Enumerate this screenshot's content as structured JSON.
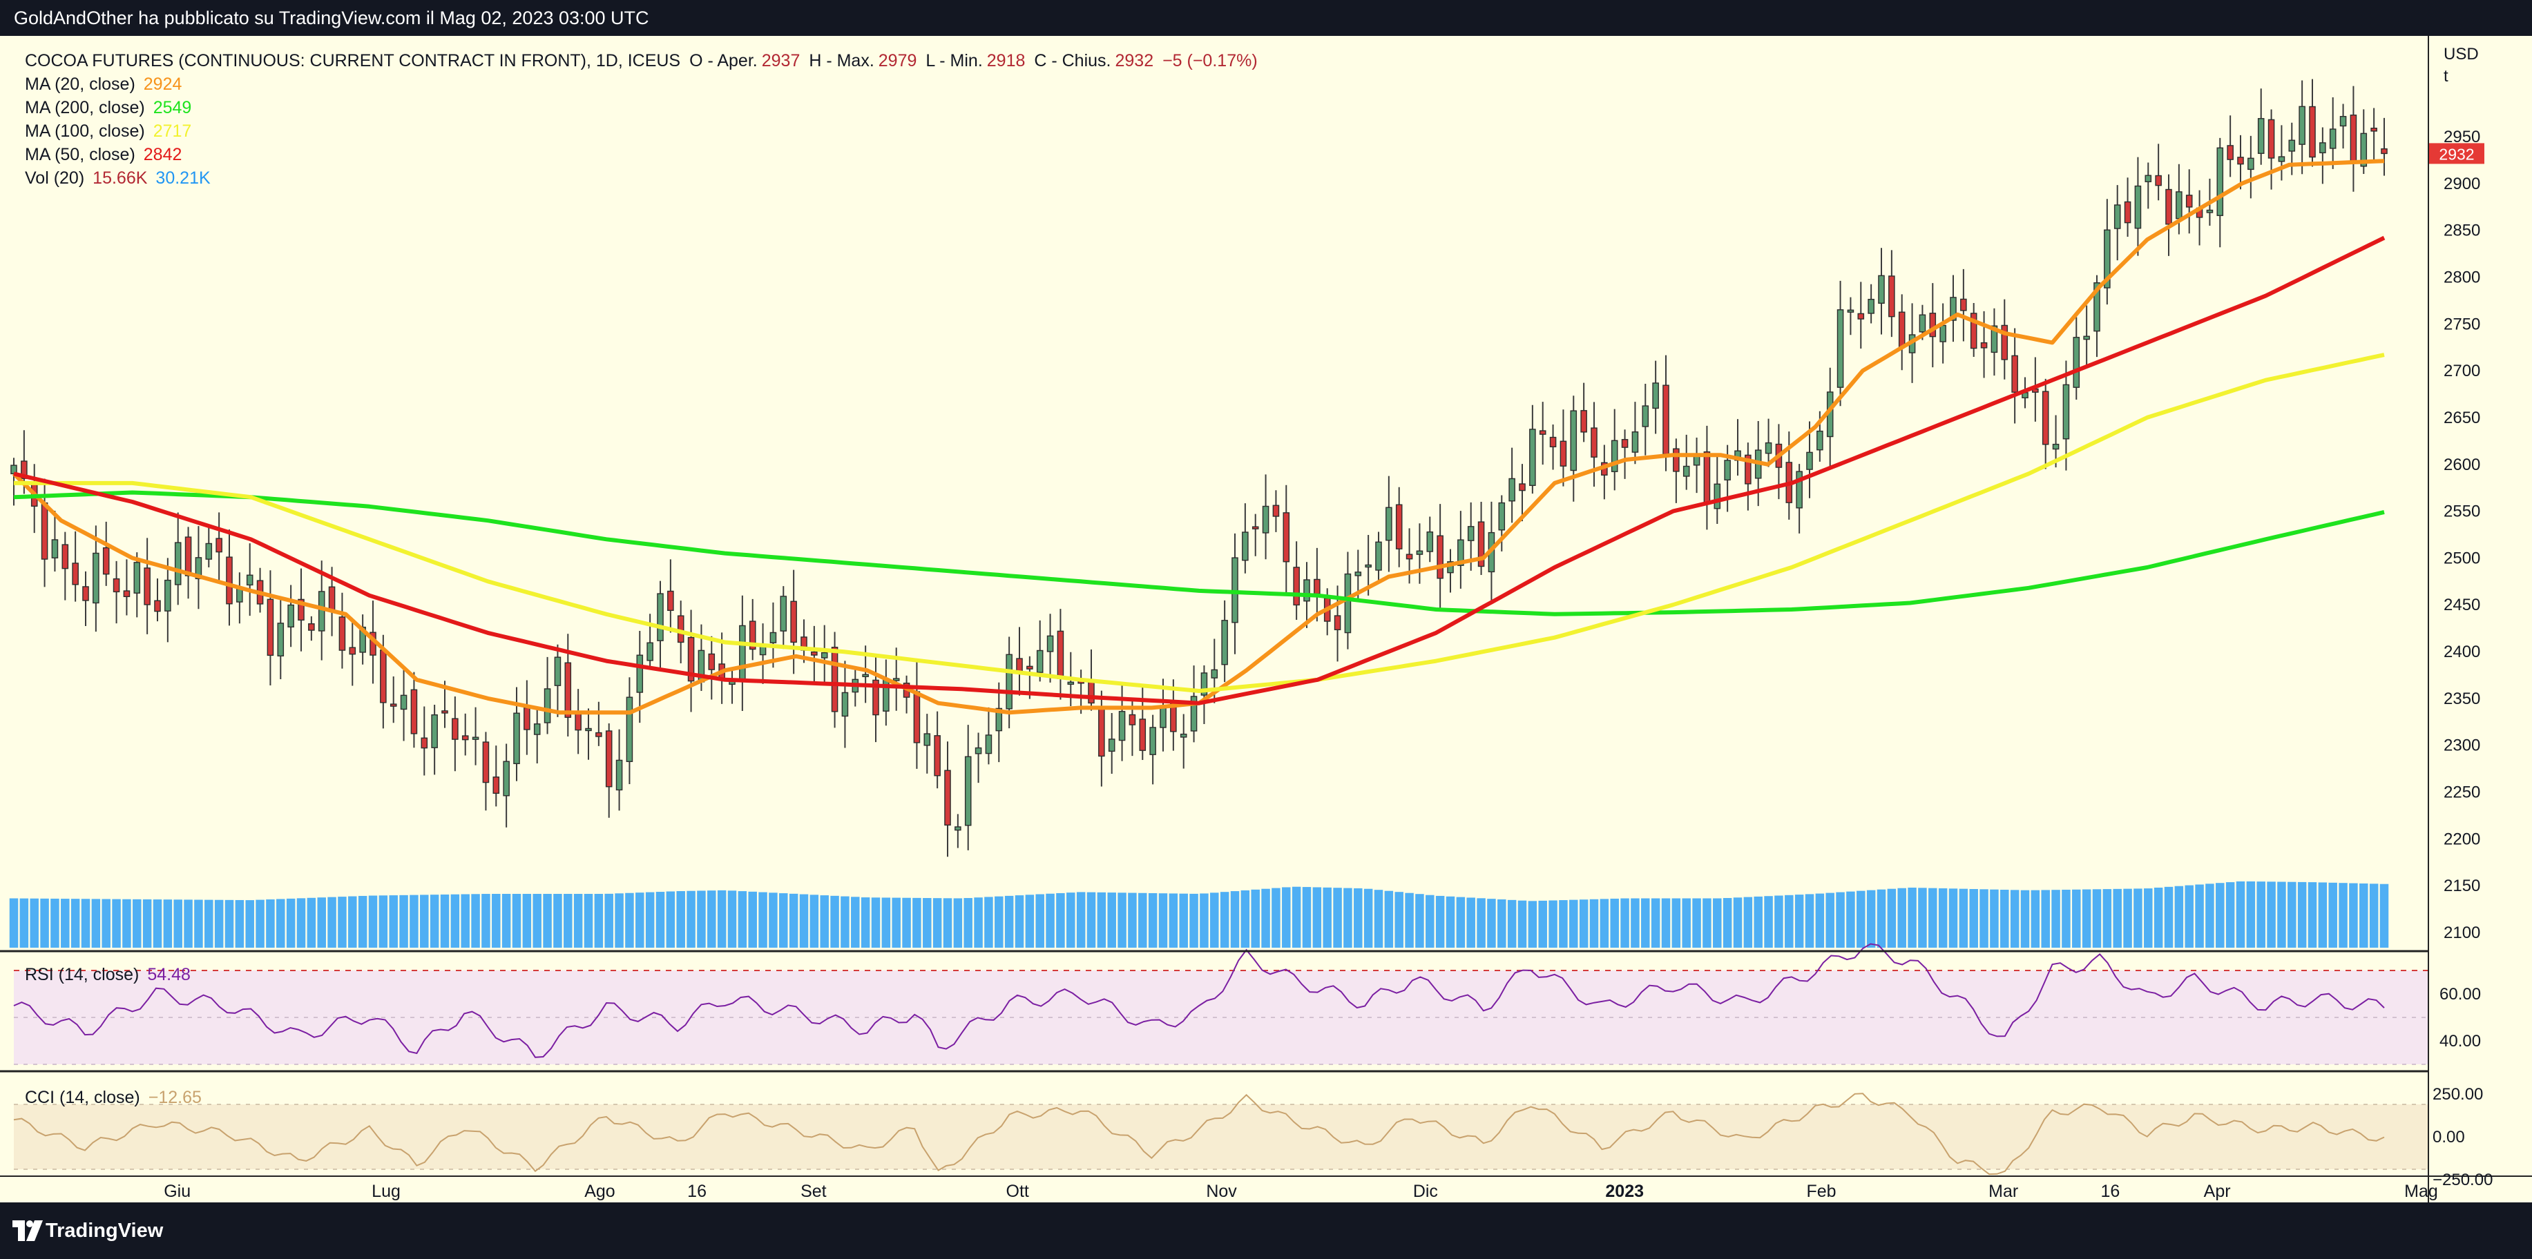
{
  "header": {
    "publish_line": "GoldAndOther ha pubblicato su TradingView.com il Mag 02, 2023 03:00 UTC"
  },
  "footer": {
    "brand": "TradingView"
  },
  "legend": {
    "title": "COCOA FUTURES (CONTINUOUS: CURRENT CONTRACT IN FRONT), 1D, ICEUS",
    "open_label": "O - Aper.",
    "open": "2937",
    "high_label": "H - Max.",
    "high": "2979",
    "low_label": "L - Min.",
    "low": "2918",
    "close_label": "C - Chius.",
    "close": "2932",
    "change": "−5 (−0.17%)",
    "indicators": [
      {
        "label": "MA (20, close)",
        "value": "2924",
        "color": "#f7931a"
      },
      {
        "label": "MA (200, close)",
        "value": "2549",
        "color": "#1ee31e"
      },
      {
        "label": "MA (100, close)",
        "value": "2717",
        "color": "#f2f230"
      },
      {
        "label": "MA (50, close)",
        "value": "2842",
        "color": "#e31919"
      },
      {
        "label": "Vol (20)",
        "value": "15.66K",
        "value2": "30.21K",
        "color": "#b22833",
        "color2": "#2196f3"
      }
    ],
    "rsi": {
      "label": "RSI (14, close)",
      "value": "54.48",
      "color": "#7b1fa2"
    },
    "cci": {
      "label": "CCI (14, close)",
      "value": "−12.65",
      "color": "#c8a26e"
    }
  },
  "chart_data": {
    "type": "candlestick",
    "symbol": "COCOA FUTURES (CONTINUOUS: CURRENT CONTRACT IN FRONT)",
    "interval": "1D",
    "exchange": "ICEUS",
    "currency_label": "USD",
    "unit_label": "t",
    "last_price": 2932,
    "price_axis": {
      "ticks": [
        2100,
        2150,
        2200,
        2250,
        2300,
        2350,
        2400,
        2450,
        2500,
        2550,
        2600,
        2650,
        2700,
        2750,
        2800,
        2850,
        2900,
        2950
      ]
    },
    "rsi_axis": {
      "ticks": [
        "60.00",
        "40.00"
      ],
      "band": [
        30,
        70
      ]
    },
    "cci_axis": {
      "ticks": [
        "250.00",
        "0.00",
        "−250.00"
      ],
      "band": [
        -100,
        100
      ]
    },
    "x_labels": [
      "Giu",
      "Lug",
      "Ago",
      "16",
      "Set",
      "Ott",
      "Nov",
      "Dic",
      "2023",
      "Feb",
      "Mar",
      "16",
      "Apr",
      "Mag"
    ],
    "x_label_positions": [
      0.073,
      0.159,
      0.247,
      0.287,
      0.335,
      0.419,
      0.503,
      0.587,
      0.669,
      0.75,
      0.825,
      0.869,
      0.913,
      0.997
    ],
    "close_path": [
      [
        0,
        2590
      ],
      [
        0.02,
        2470
      ],
      [
        0.04,
        2500
      ],
      [
        0.06,
        2440
      ],
      [
        0.08,
        2520
      ],
      [
        0.1,
        2470
      ],
      [
        0.11,
        2400
      ],
      [
        0.13,
        2450
      ],
      [
        0.15,
        2410
      ],
      [
        0.16,
        2330
      ],
      [
        0.17,
        2300
      ],
      [
        0.19,
        2340
      ],
      [
        0.2,
        2260
      ],
      [
        0.22,
        2320
      ],
      [
        0.23,
        2370
      ],
      [
        0.24,
        2330
      ],
      [
        0.255,
        2280
      ],
      [
        0.27,
        2440
      ],
      [
        0.29,
        2390
      ],
      [
        0.31,
        2400
      ],
      [
        0.33,
        2420
      ],
      [
        0.345,
        2380
      ],
      [
        0.36,
        2360
      ],
      [
        0.38,
        2330
      ],
      [
        0.395,
        2230
      ],
      [
        0.41,
        2320
      ],
      [
        0.43,
        2390
      ],
      [
        0.445,
        2400
      ],
      [
        0.46,
        2310
      ],
      [
        0.48,
        2300
      ],
      [
        0.5,
        2360
      ],
      [
        0.51,
        2440
      ],
      [
        0.525,
        2550
      ],
      [
        0.54,
        2480
      ],
      [
        0.56,
        2450
      ],
      [
        0.575,
        2510
      ],
      [
        0.59,
        2510
      ],
      [
        0.61,
        2520
      ],
      [
        0.625,
        2510
      ],
      [
        0.64,
        2620
      ],
      [
        0.66,
        2650
      ],
      [
        0.675,
        2580
      ],
      [
        0.69,
        2670
      ],
      [
        0.7,
        2620
      ],
      [
        0.72,
        2580
      ],
      [
        0.74,
        2600
      ],
      [
        0.755,
        2590
      ],
      [
        0.77,
        2740
      ],
      [
        0.785,
        2770
      ],
      [
        0.8,
        2740
      ],
      [
        0.815,
        2780
      ],
      [
        0.83,
        2720
      ],
      [
        0.845,
        2690
      ],
      [
        0.86,
        2640
      ],
      [
        0.875,
        2760
      ],
      [
        0.89,
        2870
      ],
      [
        0.905,
        2910
      ],
      [
        0.92,
        2870
      ],
      [
        0.935,
        2910
      ],
      [
        0.95,
        2940
      ],
      [
        0.965,
        2970
      ],
      [
        0.98,
        2940
      ],
      [
        1,
        2932
      ]
    ],
    "ma_lines": [
      {
        "name": "MA (20, close)",
        "color": "#f7931a",
        "points": [
          [
            0,
            2590
          ],
          [
            0.02,
            2540
          ],
          [
            0.05,
            2500
          ],
          [
            0.1,
            2465
          ],
          [
            0.14,
            2440
          ],
          [
            0.17,
            2370
          ],
          [
            0.2,
            2350
          ],
          [
            0.23,
            2335
          ],
          [
            0.26,
            2335
          ],
          [
            0.3,
            2380
          ],
          [
            0.33,
            2395
          ],
          [
            0.36,
            2380
          ],
          [
            0.39,
            2345
          ],
          [
            0.42,
            2335
          ],
          [
            0.45,
            2340
          ],
          [
            0.48,
            2340
          ],
          [
            0.5,
            2345
          ],
          [
            0.52,
            2380
          ],
          [
            0.55,
            2440
          ],
          [
            0.58,
            2480
          ],
          [
            0.6,
            2490
          ],
          [
            0.62,
            2500
          ],
          [
            0.65,
            2580
          ],
          [
            0.68,
            2605
          ],
          [
            0.7,
            2610
          ],
          [
            0.72,
            2610
          ],
          [
            0.74,
            2600
          ],
          [
            0.76,
            2640
          ],
          [
            0.78,
            2700
          ],
          [
            0.8,
            2730
          ],
          [
            0.82,
            2760
          ],
          [
            0.84,
            2740
          ],
          [
            0.86,
            2730
          ],
          [
            0.88,
            2790
          ],
          [
            0.9,
            2840
          ],
          [
            0.92,
            2870
          ],
          [
            0.94,
            2900
          ],
          [
            0.96,
            2920
          ],
          [
            1,
            2924
          ]
        ]
      },
      {
        "name": "MA (200, close)",
        "color": "#1ee31e",
        "points": [
          [
            0,
            2565
          ],
          [
            0.05,
            2570
          ],
          [
            0.1,
            2565
          ],
          [
            0.15,
            2555
          ],
          [
            0.2,
            2540
          ],
          [
            0.25,
            2520
          ],
          [
            0.3,
            2505
          ],
          [
            0.35,
            2495
          ],
          [
            0.4,
            2485
          ],
          [
            0.45,
            2475
          ],
          [
            0.5,
            2465
          ],
          [
            0.55,
            2460
          ],
          [
            0.6,
            2445
          ],
          [
            0.65,
            2440
          ],
          [
            0.7,
            2442
          ],
          [
            0.75,
            2445
          ],
          [
            0.8,
            2452
          ],
          [
            0.85,
            2468
          ],
          [
            0.9,
            2490
          ],
          [
            0.95,
            2520
          ],
          [
            1,
            2549
          ]
        ]
      },
      {
        "name": "MA (100, close)",
        "color": "#f2f230",
        "points": [
          [
            0,
            2580
          ],
          [
            0.05,
            2580
          ],
          [
            0.1,
            2565
          ],
          [
            0.15,
            2520
          ],
          [
            0.2,
            2475
          ],
          [
            0.25,
            2440
          ],
          [
            0.3,
            2410
          ],
          [
            0.35,
            2400
          ],
          [
            0.4,
            2385
          ],
          [
            0.45,
            2370
          ],
          [
            0.5,
            2358
          ],
          [
            0.55,
            2370
          ],
          [
            0.6,
            2390
          ],
          [
            0.65,
            2415
          ],
          [
            0.7,
            2450
          ],
          [
            0.75,
            2490
          ],
          [
            0.8,
            2540
          ],
          [
            0.85,
            2590
          ],
          [
            0.9,
            2650
          ],
          [
            0.95,
            2690
          ],
          [
            1,
            2717
          ]
        ]
      },
      {
        "name": "MA (50, close)",
        "color": "#e31919",
        "points": [
          [
            0,
            2590
          ],
          [
            0.05,
            2560
          ],
          [
            0.1,
            2520
          ],
          [
            0.15,
            2460
          ],
          [
            0.2,
            2420
          ],
          [
            0.25,
            2390
          ],
          [
            0.3,
            2370
          ],
          [
            0.35,
            2365
          ],
          [
            0.4,
            2360
          ],
          [
            0.45,
            2352
          ],
          [
            0.5,
            2345
          ],
          [
            0.55,
            2370
          ],
          [
            0.6,
            2420
          ],
          [
            0.65,
            2490
          ],
          [
            0.7,
            2550
          ],
          [
            0.75,
            2580
          ],
          [
            0.8,
            2630
          ],
          [
            0.85,
            2680
          ],
          [
            0.9,
            2730
          ],
          [
            0.95,
            2780
          ],
          [
            1,
            2842
          ]
        ]
      }
    ],
    "volume_profile": [
      [
        0,
        0.55
      ],
      [
        0.1,
        0.53
      ],
      [
        0.15,
        0.58
      ],
      [
        0.2,
        0.6
      ],
      [
        0.25,
        0.6
      ],
      [
        0.28,
        0.63
      ],
      [
        0.3,
        0.64
      ],
      [
        0.33,
        0.6
      ],
      [
        0.36,
        0.56
      ],
      [
        0.4,
        0.55
      ],
      [
        0.45,
        0.62
      ],
      [
        0.5,
        0.6
      ],
      [
        0.54,
        0.68
      ],
      [
        0.57,
        0.66
      ],
      [
        0.6,
        0.58
      ],
      [
        0.64,
        0.52
      ],
      [
        0.68,
        0.55
      ],
      [
        0.72,
        0.55
      ],
      [
        0.76,
        0.6
      ],
      [
        0.8,
        0.67
      ],
      [
        0.85,
        0.64
      ],
      [
        0.9,
        0.66
      ],
      [
        0.94,
        0.74
      ],
      [
        0.97,
        0.73
      ],
      [
        1,
        0.71
      ]
    ],
    "rsi_path": [
      [
        0,
        55
      ],
      [
        0.03,
        44
      ],
      [
        0.06,
        60
      ],
      [
        0.09,
        55
      ],
      [
        0.12,
        42
      ],
      [
        0.15,
        51
      ],
      [
        0.17,
        36
      ],
      [
        0.19,
        52
      ],
      [
        0.22,
        34
      ],
      [
        0.25,
        54
      ],
      [
        0.28,
        47
      ],
      [
        0.3,
        58
      ],
      [
        0.33,
        52
      ],
      [
        0.36,
        45
      ],
      [
        0.38,
        52
      ],
      [
        0.39,
        37
      ],
      [
        0.42,
        56
      ],
      [
        0.45,
        60
      ],
      [
        0.48,
        46
      ],
      [
        0.5,
        52
      ],
      [
        0.52,
        76
      ],
      [
        0.54,
        66
      ],
      [
        0.57,
        56
      ],
      [
        0.59,
        66
      ],
      [
        0.62,
        54
      ],
      [
        0.64,
        72
      ],
      [
        0.67,
        54
      ],
      [
        0.7,
        64
      ],
      [
        0.73,
        56
      ],
      [
        0.76,
        70
      ],
      [
        0.78,
        80
      ],
      [
        0.8,
        74
      ],
      [
        0.82,
        58
      ],
      [
        0.84,
        40
      ],
      [
        0.86,
        70
      ],
      [
        0.88,
        74
      ],
      [
        0.9,
        58
      ],
      [
        0.92,
        66
      ],
      [
        0.95,
        55
      ],
      [
        0.97,
        58
      ],
      [
        1,
        54.48
      ]
    ],
    "cci_path": [
      [
        0,
        100
      ],
      [
        0.03,
        -60
      ],
      [
        0.06,
        80
      ],
      [
        0.09,
        20
      ],
      [
        0.12,
        -140
      ],
      [
        0.15,
        40
      ],
      [
        0.17,
        -160
      ],
      [
        0.19,
        60
      ],
      [
        0.22,
        -180
      ],
      [
        0.25,
        120
      ],
      [
        0.28,
        -40
      ],
      [
        0.3,
        150
      ],
      [
        0.33,
        40
      ],
      [
        0.36,
        -80
      ],
      [
        0.38,
        60
      ],
      [
        0.39,
        -220
      ],
      [
        0.42,
        120
      ],
      [
        0.45,
        160
      ],
      [
        0.48,
        -100
      ],
      [
        0.5,
        40
      ],
      [
        0.52,
        220
      ],
      [
        0.54,
        90
      ],
      [
        0.57,
        -60
      ],
      [
        0.59,
        120
      ],
      [
        0.62,
        -40
      ],
      [
        0.64,
        200
      ],
      [
        0.67,
        -60
      ],
      [
        0.7,
        140
      ],
      [
        0.73,
        -20
      ],
      [
        0.76,
        160
      ],
      [
        0.78,
        240
      ],
      [
        0.8,
        140
      ],
      [
        0.82,
        -140
      ],
      [
        0.84,
        -220
      ],
      [
        0.86,
        140
      ],
      [
        0.88,
        180
      ],
      [
        0.9,
        20
      ],
      [
        0.92,
        120
      ],
      [
        0.95,
        40
      ],
      [
        0.97,
        60
      ],
      [
        1,
        -12.65
      ]
    ]
  },
  "colors": {
    "pane_bg": "#fffee6",
    "rsi_bg": "#f5e6f1",
    "cci_bg": "#f7edd2",
    "up": "#5c9e74",
    "down": "#d43a3a",
    "volume": "#4faff4",
    "last_price_label": "#e53935"
  }
}
